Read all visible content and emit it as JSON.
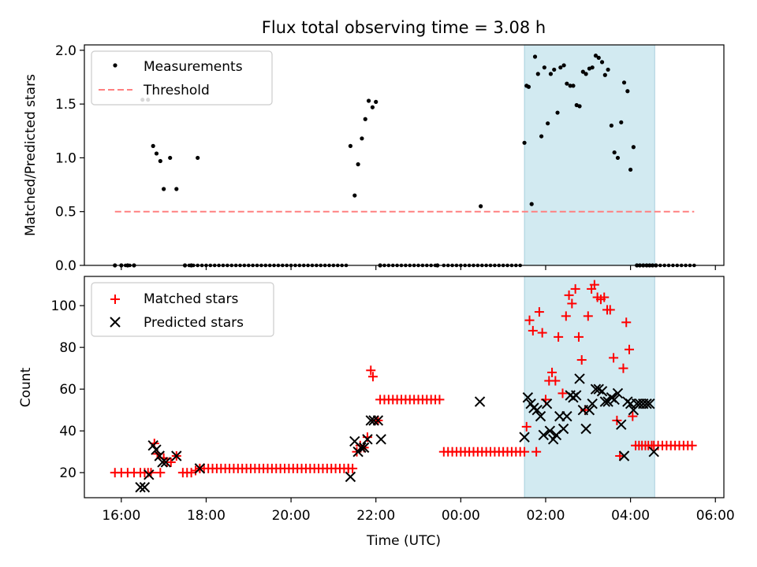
{
  "chart_data": [
    {
      "type": "scatter",
      "title": "Flux total observing time = 3.08 h",
      "ylabel": "Matched/Predicted stars",
      "ylim": [
        0.0,
        2.05
      ],
      "yticks": [
        0.0,
        0.5,
        1.0,
        1.5,
        2.0
      ],
      "ytick_labels": [
        "0.0",
        "0.5",
        "1.0",
        "1.5",
        "2.0"
      ],
      "legend": {
        "placement": "top-left",
        "entries": [
          "Measurements",
          "Threshold"
        ]
      },
      "threshold": {
        "name": "Threshold",
        "value": 0.5,
        "x_range": [
          15.85,
          29.5
        ],
        "color": "#ff8080"
      },
      "highlight": {
        "x_range": [
          25.5,
          28.57
        ],
        "color": "#add8e6"
      },
      "series": [
        {
          "name": "Measurements",
          "color": "#000000",
          "x": [
            15.85,
            16.0,
            16.15,
            16.3,
            16.5,
            16.63,
            16.75,
            16.83,
            16.92,
            17.0,
            17.15,
            17.3,
            17.5,
            17.65,
            17.8,
            21.4,
            21.5,
            21.58,
            21.67,
            21.75,
            21.83,
            21.92,
            22.0,
            22.1,
            23.45,
            24.47,
            25.5,
            25.55,
            25.6,
            25.67,
            25.75,
            25.82,
            25.9,
            25.97,
            26.05,
            26.12,
            26.2,
            26.28,
            26.35,
            26.43,
            26.5,
            26.58,
            26.65,
            26.73,
            26.8,
            26.88,
            26.95,
            27.03,
            27.1,
            27.18,
            27.25,
            27.33,
            27.4,
            27.47,
            27.55,
            27.62,
            27.7,
            27.78,
            27.85,
            27.93,
            28.0,
            28.07,
            28.15,
            28.22,
            28.3,
            28.38,
            28.45,
            28.52,
            28.6
          ],
          "y": [
            0.0,
            0.0,
            0.0,
            0.0,
            1.54,
            1.54,
            1.11,
            1.04,
            0.97,
            0.71,
            1.0,
            0.71,
            0.0,
            0.0,
            1.0,
            1.11,
            0.65,
            0.94,
            1.18,
            1.36,
            1.53,
            1.47,
            1.52,
            0.0,
            0.0,
            0.55,
            1.14,
            1.67,
            1.66,
            0.57,
            1.94,
            1.78,
            1.2,
            1.84,
            1.32,
            1.78,
            1.82,
            1.42,
            1.84,
            1.86,
            1.69,
            1.67,
            1.67,
            1.49,
            1.48,
            1.8,
            1.78,
            1.83,
            1.84,
            1.95,
            1.93,
            1.89,
            1.77,
            1.82,
            1.3,
            1.05,
            1.0,
            1.33,
            1.7,
            1.62,
            0.89,
            1.1,
            0.0,
            0.0,
            0.0,
            0.0,
            0.0,
            0.0,
            0.0
          ]
        }
      ]
    },
    {
      "type": "scatter",
      "xlabel": "Time (UTC)",
      "ylabel": "Count",
      "xlim": [
        15.13,
        30.2
      ],
      "ylim": [
        8,
        114
      ],
      "xticks": [
        16,
        18,
        20,
        22,
        24,
        26,
        28,
        30
      ],
      "xtick_labels": [
        "16:00",
        "18:00",
        "20:00",
        "22:00",
        "00:00",
        "02:00",
        "04:00",
        "06:00"
      ],
      "yticks": [
        20,
        40,
        60,
        80,
        100
      ],
      "ytick_labels": [
        "20",
        "40",
        "60",
        "80",
        "100"
      ],
      "legend": {
        "placement": "top-left",
        "entries": [
          "Matched stars",
          "Predicted stars"
        ]
      },
      "highlight": {
        "x_range": [
          25.5,
          28.57
        ],
        "color": "#add8e6"
      },
      "series": [
        {
          "name": "Matched stars",
          "marker": "plus",
          "color": "#ff0000",
          "x": [
            15.85,
            16.0,
            16.15,
            16.3,
            16.45,
            16.55,
            16.63,
            16.7,
            16.78,
            16.85,
            16.92,
            17.0,
            17.08,
            17.17,
            17.3,
            17.45,
            17.55,
            17.65,
            17.75,
            17.85,
            21.35,
            21.45,
            21.55,
            21.63,
            21.72,
            21.8,
            21.88,
            21.93,
            21.98,
            22.05,
            23.5,
            25.55,
            25.62,
            25.7,
            25.78,
            25.85,
            25.92,
            26.0,
            26.08,
            26.15,
            26.23,
            26.3,
            26.4,
            26.48,
            26.55,
            26.62,
            26.7,
            26.78,
            26.85,
            26.93,
            27.0,
            27.08,
            27.15,
            27.22,
            27.3,
            27.38,
            27.45,
            27.52,
            27.6,
            27.68,
            27.75,
            27.83,
            27.9,
            27.97,
            28.05,
            28.12,
            28.2,
            28.27,
            28.35,
            28.42,
            28.5
          ],
          "y": [
            20,
            20,
            20,
            20,
            20,
            20,
            20,
            20,
            34,
            29,
            20,
            27,
            25,
            25,
            28,
            20,
            20,
            20,
            21,
            22,
            22,
            22,
            30,
            33,
            32,
            37,
            69,
            66,
            45,
            45,
            55,
            42,
            93,
            88,
            30,
            97,
            87,
            55,
            64,
            68,
            64,
            85,
            58,
            95,
            105,
            101,
            108,
            85,
            74,
            50,
            95,
            108,
            110,
            104,
            103,
            104,
            98,
            98,
            75,
            45,
            28,
            70,
            92,
            79,
            47,
            33,
            33,
            33,
            33,
            33,
            33
          ],
          "runs": [
            {
              "x_start": 17.85,
              "x_end": 21.35,
              "y": 22,
              "step": 0.1
            },
            {
              "x_start": 22.1,
              "x_end": 23.45,
              "y": 55,
              "step": 0.1
            },
            {
              "x_start": 23.6,
              "x_end": 25.5,
              "y": 30,
              "step": 0.1
            },
            {
              "x_start": 28.55,
              "x_end": 29.5,
              "y": 33,
              "step": 0.1
            }
          ]
        },
        {
          "name": "Predicted stars",
          "marker": "x",
          "color": "#000000",
          "x": [
            16.45,
            16.55,
            16.65,
            16.75,
            16.82,
            16.9,
            16.97,
            17.05,
            17.3,
            17.85,
            21.4,
            21.5,
            21.58,
            21.65,
            21.72,
            21.8,
            21.88,
            21.95,
            22.05,
            22.12,
            24.45,
            25.5,
            25.58,
            25.65,
            25.72,
            25.8,
            25.88,
            25.95,
            26.03,
            26.1,
            26.18,
            26.25,
            26.33,
            26.42,
            26.5,
            26.58,
            26.65,
            26.72,
            26.8,
            26.88,
            26.95,
            27.03,
            27.1,
            27.18,
            27.25,
            27.33,
            27.4,
            27.47,
            27.55,
            27.62,
            27.7,
            27.78,
            27.85,
            27.93,
            28.0,
            28.07,
            28.15,
            28.22,
            28.3,
            28.38,
            28.45,
            28.55
          ],
          "y": [
            13,
            13,
            19,
            33,
            31,
            28,
            25,
            25,
            28,
            22,
            18,
            35,
            30,
            32,
            32,
            36,
            45,
            45,
            45,
            36,
            54,
            37,
            56,
            53,
            51,
            50,
            47,
            38,
            53,
            40,
            36,
            38,
            47,
            41,
            47,
            57,
            56,
            57,
            65,
            50,
            41,
            50,
            53,
            60,
            60,
            59,
            54,
            54,
            56,
            55,
            58,
            43,
            28,
            54,
            53,
            50,
            53,
            53,
            53,
            53,
            53,
            30
          ]
        }
      ]
    }
  ]
}
